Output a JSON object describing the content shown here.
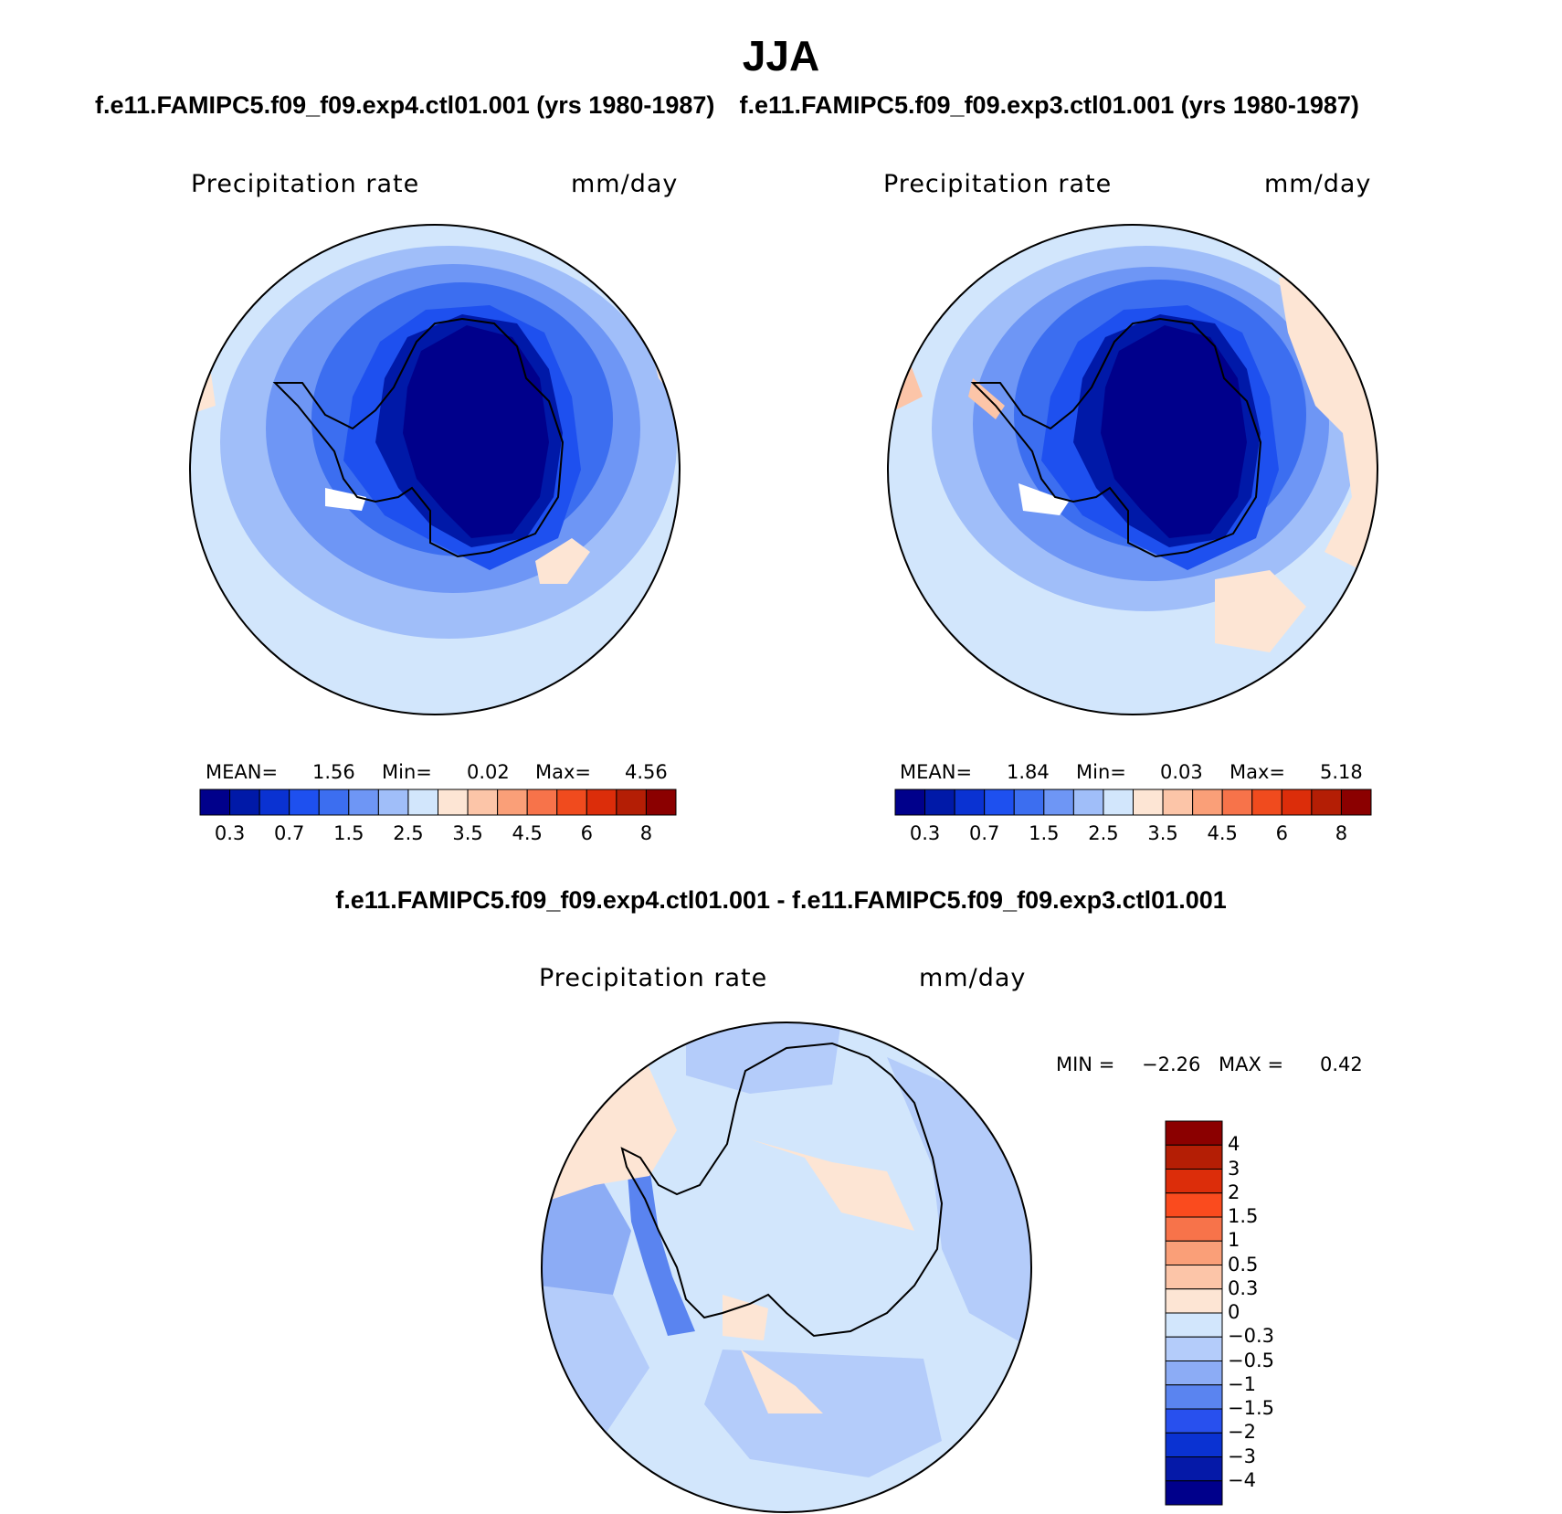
{
  "title": "JJA",
  "panels": [
    {
      "id": "exp4",
      "title": "f.e11.FAMIPC5.f09_f09.exp4.ctl01.001 (yrs 1980-1987)",
      "variable": "Precipitation rate",
      "units": "mm/day",
      "stats": {
        "mean_label": "MEAN=",
        "mean": "1.56",
        "min_label": "Min=",
        "min": "0.02",
        "max_label": "Max=",
        "max": "4.56"
      }
    },
    {
      "id": "exp3",
      "title": "f.e11.FAMIPC5.f09_f09.exp3.ctl01.001 (yrs 1980-1987)",
      "variable": "Precipitation rate",
      "units": "mm/day",
      "stats": {
        "mean_label": "MEAN=",
        "mean": "1.84",
        "min_label": "Min=",
        "min": "0.03",
        "max_label": "Max=",
        "max": "5.18"
      }
    }
  ],
  "colorbar": {
    "colors": [
      "#00008b",
      "#0019a8",
      "#0a32d2",
      "#1e50ef",
      "#3c6ef0",
      "#6e96f5",
      "#a0bef9",
      "#d2e6fc",
      "#fde5d4",
      "#fcc5a8",
      "#fa9f78",
      "#f7734a",
      "#f04b1e",
      "#dc2d0a",
      "#b41e05",
      "#8b0000"
    ],
    "tick_labels": [
      "0.3",
      "0.7",
      "1.5",
      "2.5",
      "3.5",
      "4.5",
      "6",
      "8"
    ]
  },
  "difference": {
    "title": "f.e11.FAMIPC5.f09_f09.exp4.ctl01.001 - f.e11.FAMIPC5.f09_f09.exp3.ctl01.001",
    "variable": "Precipitation rate",
    "units": "mm/day",
    "min_label": "MIN =",
    "min": "−2.26",
    "max_label": "MAX =",
    "max": "0.42",
    "colorbar": {
      "colors_top_to_bottom": [
        "#8b0000",
        "#b41e05",
        "#dc2d0a",
        "#fa4b1e",
        "#f7734a",
        "#fa9f78",
        "#fcc5a8",
        "#fde5d4",
        "#d2e6fc",
        "#b4ccfa",
        "#8cacf5",
        "#5a84f0",
        "#2850ee",
        "#0a32d2",
        "#0519a8",
        "#00008b"
      ],
      "tick_labels_top_to_bottom": [
        "4",
        "3",
        "2",
        "1.5",
        "1",
        "0.5",
        "0.3",
        "0",
        "−0.3",
        "−0.5",
        "−1",
        "−1.5",
        "−2",
        "−3",
        "−4"
      ]
    }
  },
  "map_colors": {
    "shelf": "#a0bef9",
    "ocean_light": "#d2e6fc",
    "mid": "#6e96f5",
    "dark1": "#3c6ef0",
    "dark2": "#1e50ef",
    "dark3": "#0019a8",
    "core": "#00008b",
    "warm": "#fde5d4",
    "warm2": "#fcc5a8",
    "diff_base": "#d2e6fc",
    "diff_neg1": "#b4ccfa",
    "diff_neg2": "#8cacf5",
    "diff_neg3": "#5a84f0",
    "coast": "#000000"
  }
}
